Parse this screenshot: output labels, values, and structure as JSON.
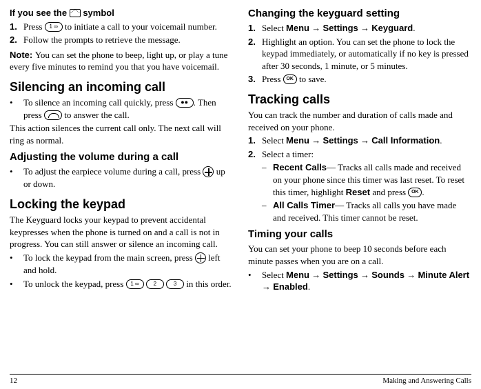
{
  "left": {
    "topline_prefix": "If you see the ",
    "topline_suffix": " symbol",
    "step1_a": "Press ",
    "step1_b": " to initiate a call to your voicemail number.",
    "step2": "Follow the prompts to retrieve the message.",
    "note_label": "Note:  ",
    "note_body": "You can set the phone to beep, light up, or play a tune every five minutes to remind you that you have voicemail.",
    "h_silencing": "Silencing an incoming call",
    "sil_a": "To silence an incoming call quickly, press ",
    "sil_b": ". Then press ",
    "sil_c": " to answer the call.",
    "sil_after": "This action silences the current call only. The next call will ring as normal.",
    "h_adjust": "Adjusting the volume during a call",
    "adj_a": "To adjust the earpiece volume during a call, press ",
    "adj_b": " up or down.",
    "h_lock": "Locking the keypad",
    "lock_intro": "The Keyguard locks your keypad to prevent accidental keypresses when the phone is turned on and a call is not in progress. You can still answer or silence an incoming call.",
    "lock_a1": "To lock the keypad from the main screen, press ",
    "lock_a2": " left and hold.",
    "lock_b1": "To unlock the keypad, press ",
    "lock_b2": " in this order."
  },
  "right": {
    "h_keyguard": "Changing the keyguard setting",
    "kg1_a": "Select ",
    "kg1_menu": "Menu",
    "kg1_settings": "Settings",
    "kg1_keyguard": "Keyguard",
    "kg2": "Highlight an option. You can set the phone to lock the keypad immediately, or automatically if no key is pressed after 30 seconds, 1 minute, or 5 minutes.",
    "kg3_a": "Press ",
    "kg3_b": " to save.",
    "h_tracking": "Tracking calls",
    "tr_intro": "You can track the number and duration of calls made and received on your phone.",
    "tr1_a": "Select ",
    "tr1_menu": "Menu",
    "tr1_settings": "Settings",
    "tr1_ci": "Call Information",
    "tr2": "Select a timer:",
    "tr_rc_label": "Recent Calls",
    "tr_rc_body_a": "— Tracks all calls made and received on your phone since this timer was last reset. To reset this timer, highlight ",
    "tr_rc_reset": "Reset",
    "tr_rc_body_b": " and press ",
    "tr_rc_body_c": ".",
    "tr_ac_label": "All Calls Timer",
    "tr_ac_body": "— Tracks all calls you have made and received. This timer cannot be reset.",
    "h_timing": "Timing your calls",
    "tm_intro": "You can set your phone to beep 10 seconds before each minute passes when you are on a call.",
    "tm_a": "Select ",
    "tm_menu": "Menu",
    "tm_settings": "Settings",
    "tm_sounds": "Sounds",
    "tm_ma": "Minute Alert",
    "tm_en": "Enabled"
  },
  "footer": {
    "page": "12",
    "title": "Making and Answering Calls"
  },
  "arrow": "→",
  "keys": {
    "k1": "1 ∞",
    "k2": "2",
    "k3": "3",
    "ok": "OK",
    "sil": "●●"
  }
}
